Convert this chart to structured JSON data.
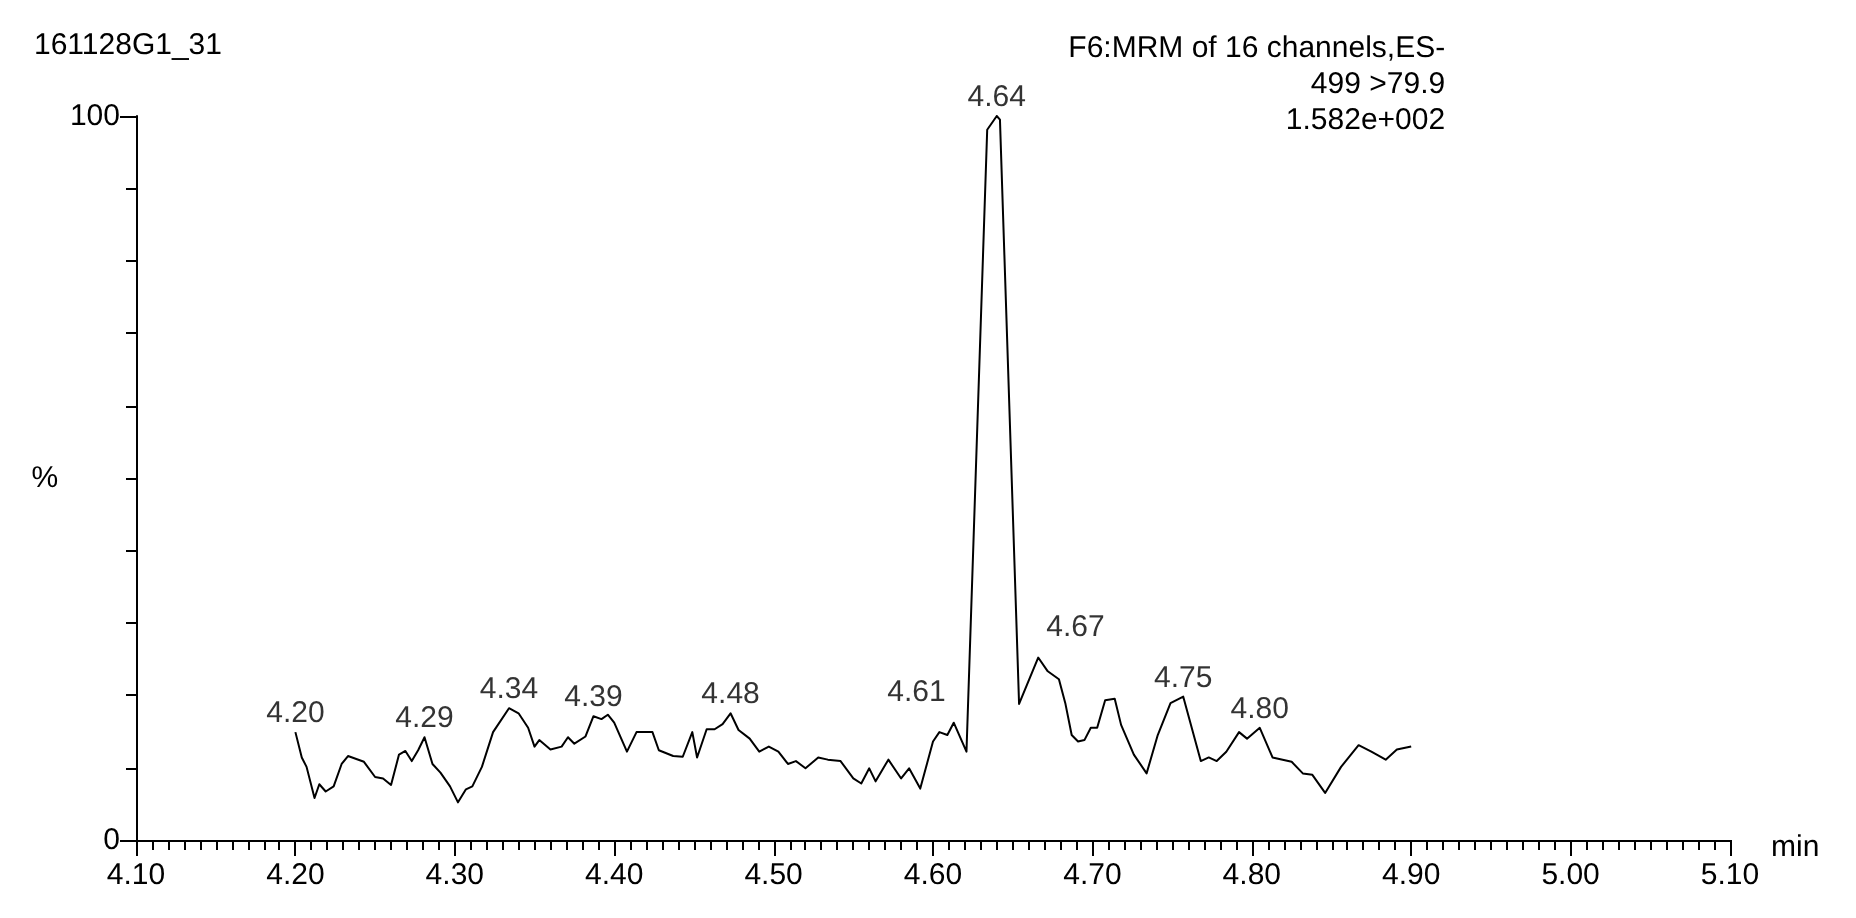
{
  "chart_data": {
    "type": "line",
    "title": "161128G1_31",
    "subtitle": "F6:MRM of 16 channels,ES-\n499 >79.9\n1.582e+002",
    "xlabel": "min",
    "ylabel": "%",
    "xlim": [
      4.1,
      5.1
    ],
    "xticks": [
      {
        "value": 4.1,
        "label": "4.10"
      },
      {
        "value": 4.2,
        "label": "4.20"
      },
      {
        "value": 4.3,
        "label": "4.30"
      },
      {
        "value": 4.4,
        "label": "4.40"
      },
      {
        "value": 4.5,
        "label": "4.50"
      },
      {
        "value": 4.6,
        "label": "4.60"
      },
      {
        "value": 4.7,
        "label": "4.70"
      },
      {
        "value": 4.8,
        "label": "4.80"
      },
      {
        "value": 4.9,
        "label": "4.90"
      },
      {
        "value": 5.0,
        "label": "5.00"
      },
      {
        "value": 5.1,
        "label": "5.10"
      }
    ],
    "ylim": [
      0,
      100
    ],
    "yticks": [
      0,
      100
    ],
    "grid": false,
    "marker": "none",
    "line_style": "solid",
    "series": [
      {
        "color": "#000000",
        "x": [
          4.2,
          4.204,
          4.207,
          4.212,
          4.215,
          4.219,
          4.224,
          4.229,
          4.233,
          4.243,
          4.25,
          4.255,
          4.26,
          4.265,
          4.269,
          4.273,
          4.277,
          4.281,
          4.286,
          4.291,
          4.297,
          4.302,
          4.307,
          4.311,
          4.317,
          4.324,
          4.334,
          4.34,
          4.346,
          4.35,
          4.353,
          4.36,
          4.367,
          4.371,
          4.375,
          4.382,
          4.387,
          4.392,
          4.396,
          4.4,
          4.408,
          4.414,
          4.418,
          4.424,
          4.428,
          4.437,
          4.443,
          4.449,
          4.452,
          4.458,
          4.463,
          4.468,
          4.473,
          4.478,
          4.485,
          4.491,
          4.497,
          4.503,
          4.509,
          4.514,
          4.52,
          4.528,
          4.534,
          4.542,
          4.55,
          4.555,
          4.56,
          4.564,
          4.572,
          4.58,
          4.585,
          4.592,
          4.6,
          4.604,
          4.609,
          4.613,
          4.621,
          4.634,
          4.64,
          4.642,
          4.654,
          4.666,
          4.672,
          4.679,
          4.683,
          4.687,
          4.691,
          4.695,
          4.699,
          4.703,
          4.708,
          4.714,
          4.718,
          4.726,
          4.734,
          4.741,
          4.749,
          4.757,
          4.768,
          4.773,
          4.778,
          4.784,
          4.792,
          4.797,
          4.805,
          4.813,
          4.825,
          4.832,
          4.838,
          4.846,
          4.856,
          4.867,
          4.875,
          4.884,
          4.891,
          4.9
        ],
        "values": [
          14.9,
          11.4,
          10.1,
          5.8,
          7.7,
          6.7,
          7.4,
          10.5,
          11.6,
          10.8,
          8.7,
          8.5,
          7.6,
          11.8,
          12.3,
          10.9,
          12.4,
          14.2,
          10.5,
          9.3,
          7.4,
          5.2,
          7.0,
          7.4,
          10.1,
          14.9,
          18.2,
          17.5,
          15.5,
          12.9,
          13.8,
          12.5,
          12.9,
          14.2,
          13.3,
          14.3,
          17.1,
          16.7,
          17.3,
          16.2,
          12.2,
          14.9,
          14.9,
          14.9,
          12.4,
          11.6,
          11.5,
          14.9,
          11.4,
          15.3,
          15.3,
          16.0,
          17.5,
          15.2,
          14.0,
          12.2,
          12.9,
          12.2,
          10.5,
          10.9,
          9.9,
          11.4,
          11.1,
          10.9,
          8.5,
          7.8,
          9.9,
          8.1,
          11.1,
          8.5,
          9.9,
          7.1,
          13.6,
          14.9,
          14.5,
          16.2,
          12.2,
          98.1,
          100,
          99.5,
          18.8,
          25.2,
          23.3,
          22.2,
          18.9,
          14.5,
          13.6,
          13.8,
          15.5,
          15.5,
          19.3,
          19.5,
          15.9,
          11.8,
          9.2,
          14.5,
          18.9,
          19.8,
          10.9,
          11.4,
          10.9,
          12.2,
          14.9,
          14.0,
          15.5,
          11.4,
          10.8,
          9.2,
          9.0,
          6.5,
          10.1,
          13.1,
          12.2,
          11.1,
          12.5,
          12.9
        ]
      }
    ],
    "annotations": [
      {
        "text": "4.20",
        "x": 4.2,
        "y": 14.9
      },
      {
        "text": "4.29",
        "x": 4.281,
        "y": 14.2
      },
      {
        "text": "4.34",
        "x": 4.334,
        "y": 18.2
      },
      {
        "text": "4.39",
        "x": 4.387,
        "y": 17.1
      },
      {
        "text": "4.48",
        "x": 4.473,
        "y": 17.5
      },
      {
        "text": "4.61",
        "x": 4.613,
        "y": 16.2
      },
      {
        "text": "4.64",
        "x": 4.64,
        "y": 100
      },
      {
        "text": "4.67",
        "x": 4.666,
        "y": 25.2
      },
      {
        "text": "4.75",
        "x": 4.757,
        "y": 19.8
      },
      {
        "text": "4.80",
        "x": 4.805,
        "y": 15.5
      }
    ]
  }
}
